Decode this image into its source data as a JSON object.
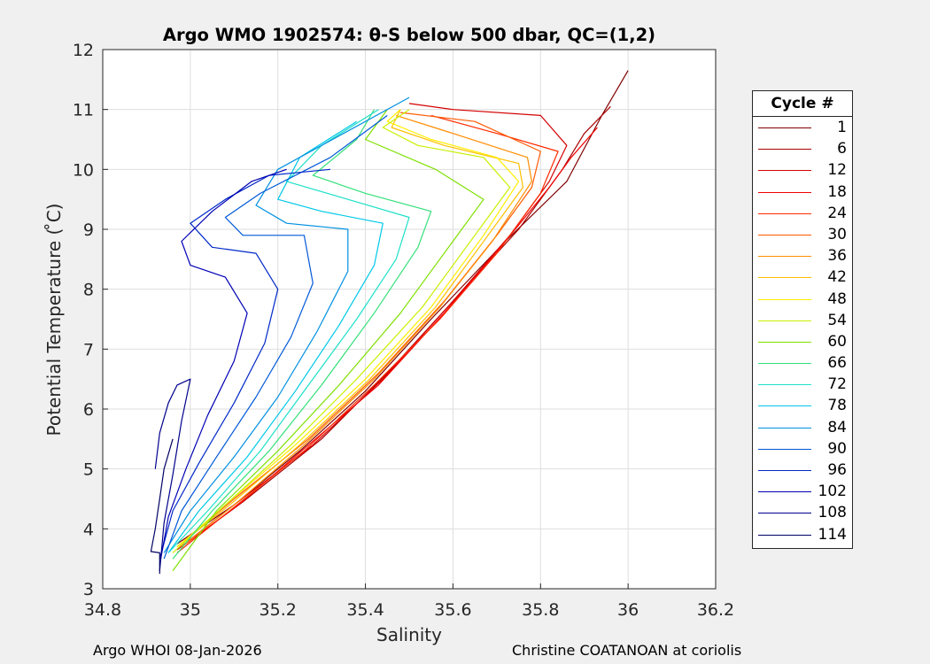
{
  "chart_data": {
    "type": "line",
    "title": "Argo WMO 1902574: θ-S below 500 dbar,  QC=(1,2)",
    "xlabel": "Salinity",
    "ylabel": "Potential Temperature ( ̊C)",
    "xlim": [
      34.8,
      36.2
    ],
    "ylim": [
      3,
      12
    ],
    "xticks": [
      "34.8",
      "35",
      "35.2",
      "35.4",
      "35.6",
      "35.8",
      "36",
      "36.2"
    ],
    "yticks": [
      "3",
      "4",
      "5",
      "6",
      "7",
      "8",
      "9",
      "10",
      "11",
      "12"
    ],
    "grid": true,
    "legend_position": "right, outside plot",
    "legend_title": "Cycle #",
    "series": [
      {
        "name": "1",
        "color": "#800000",
        "points": [
          [
            34.97,
            3.75
          ],
          [
            35.1,
            4.4
          ],
          [
            35.25,
            5.3
          ],
          [
            35.4,
            6.3
          ],
          [
            35.55,
            7.5
          ],
          [
            35.72,
            8.8
          ],
          [
            35.86,
            9.8
          ],
          [
            35.94,
            10.9
          ],
          [
            36.0,
            11.65
          ]
        ]
      },
      {
        "name": "6",
        "color": "#a80000",
        "points": [
          [
            34.98,
            3.7
          ],
          [
            35.12,
            4.45
          ],
          [
            35.3,
            5.5
          ],
          [
            35.45,
            6.6
          ],
          [
            35.6,
            7.8
          ],
          [
            35.75,
            9.0
          ],
          [
            35.85,
            10.0
          ],
          [
            35.9,
            10.6
          ],
          [
            35.96,
            11.05
          ]
        ]
      },
      {
        "name": "12",
        "color": "#d40000",
        "points": [
          [
            34.97,
            3.65
          ],
          [
            35.1,
            4.4
          ],
          [
            35.28,
            5.4
          ],
          [
            35.44,
            6.5
          ],
          [
            35.6,
            7.8
          ],
          [
            35.73,
            8.9
          ],
          [
            35.82,
            9.8
          ],
          [
            35.86,
            10.4
          ],
          [
            35.8,
            10.9
          ],
          [
            35.6,
            11.0
          ],
          [
            35.5,
            11.1
          ]
        ]
      },
      {
        "name": "18",
        "color": "#f00000",
        "points": [
          [
            34.98,
            3.7
          ],
          [
            35.11,
            4.4
          ],
          [
            35.27,
            5.4
          ],
          [
            35.43,
            6.4
          ],
          [
            35.58,
            7.6
          ],
          [
            35.72,
            8.8
          ],
          [
            35.82,
            9.7
          ],
          [
            35.87,
            10.2
          ],
          [
            35.93,
            10.7
          ]
        ]
      },
      {
        "name": "24",
        "color": "#ff2a00",
        "points": [
          [
            34.97,
            3.6
          ],
          [
            35.09,
            4.3
          ],
          [
            35.26,
            5.3
          ],
          [
            35.42,
            6.4
          ],
          [
            35.57,
            7.5
          ],
          [
            35.7,
            8.6
          ],
          [
            35.8,
            9.6
          ],
          [
            35.84,
            10.3
          ],
          [
            35.7,
            10.6
          ],
          [
            35.55,
            10.9
          ]
        ]
      },
      {
        "name": "30",
        "color": "#ff5a00",
        "points": [
          [
            34.97,
            3.7
          ],
          [
            35.1,
            4.5
          ],
          [
            35.27,
            5.5
          ],
          [
            35.43,
            6.6
          ],
          [
            35.58,
            7.8
          ],
          [
            35.7,
            8.9
          ],
          [
            35.78,
            9.7
          ],
          [
            35.8,
            10.3
          ],
          [
            35.65,
            10.8
          ],
          [
            35.48,
            10.95
          ]
        ]
      },
      {
        "name": "36",
        "color": "#ff8c00",
        "points": [
          [
            34.98,
            3.7
          ],
          [
            35.1,
            4.4
          ],
          [
            35.26,
            5.4
          ],
          [
            35.42,
            6.5
          ],
          [
            35.57,
            7.7
          ],
          [
            35.69,
            8.8
          ],
          [
            35.78,
            9.8
          ],
          [
            35.77,
            10.2
          ],
          [
            35.6,
            10.6
          ],
          [
            35.47,
            10.9
          ]
        ]
      },
      {
        "name": "42",
        "color": "#ffc000",
        "points": [
          [
            34.97,
            3.7
          ],
          [
            35.09,
            4.4
          ],
          [
            35.25,
            5.4
          ],
          [
            35.41,
            6.5
          ],
          [
            35.56,
            7.7
          ],
          [
            35.68,
            8.9
          ],
          [
            35.76,
            9.7
          ],
          [
            35.75,
            10.1
          ],
          [
            35.58,
            10.4
          ],
          [
            35.46,
            10.7
          ],
          [
            35.48,
            11.0
          ]
        ]
      },
      {
        "name": "48",
        "color": "#ffee00",
        "points": [
          [
            34.97,
            3.7
          ],
          [
            35.08,
            4.4
          ],
          [
            35.24,
            5.4
          ],
          [
            35.4,
            6.5
          ],
          [
            35.55,
            7.7
          ],
          [
            35.67,
            8.9
          ],
          [
            35.75,
            9.8
          ],
          [
            35.7,
            10.2
          ],
          [
            35.55,
            10.5
          ],
          [
            35.45,
            10.8
          ],
          [
            35.48,
            11.0
          ]
        ]
      },
      {
        "name": "54",
        "color": "#c8f000",
        "points": [
          [
            34.96,
            3.6
          ],
          [
            35.08,
            4.4
          ],
          [
            35.23,
            5.4
          ],
          [
            35.38,
            6.5
          ],
          [
            35.53,
            7.7
          ],
          [
            35.65,
            8.9
          ],
          [
            35.73,
            9.7
          ],
          [
            35.67,
            10.2
          ],
          [
            35.52,
            10.4
          ],
          [
            35.44,
            10.7
          ],
          [
            35.5,
            11.0
          ]
        ]
      },
      {
        "name": "60",
        "color": "#7ee000",
        "points": [
          [
            34.96,
            3.3
          ],
          [
            35.06,
            4.3
          ],
          [
            35.2,
            5.3
          ],
          [
            35.34,
            6.4
          ],
          [
            35.48,
            7.6
          ],
          [
            35.6,
            8.8
          ],
          [
            35.67,
            9.5
          ],
          [
            35.56,
            10.0
          ],
          [
            35.4,
            10.5
          ],
          [
            35.45,
            11.0
          ]
        ]
      },
      {
        "name": "66",
        "color": "#34e07a",
        "points": [
          [
            34.96,
            3.5
          ],
          [
            35.05,
            4.3
          ],
          [
            35.18,
            5.3
          ],
          [
            35.3,
            6.4
          ],
          [
            35.42,
            7.6
          ],
          [
            35.52,
            8.7
          ],
          [
            35.55,
            9.3
          ],
          [
            35.4,
            9.6
          ],
          [
            35.28,
            9.9
          ],
          [
            35.38,
            10.5
          ],
          [
            35.42,
            11.0
          ]
        ]
      },
      {
        "name": "72",
        "color": "#1ee0c8",
        "points": [
          [
            34.95,
            3.6
          ],
          [
            35.04,
            4.3
          ],
          [
            35.16,
            5.3
          ],
          [
            35.27,
            6.4
          ],
          [
            35.38,
            7.5
          ],
          [
            35.47,
            8.5
          ],
          [
            35.5,
            9.2
          ],
          [
            35.36,
            9.5
          ],
          [
            35.22,
            9.8
          ],
          [
            35.3,
            10.4
          ],
          [
            35.43,
            11.0
          ]
        ]
      },
      {
        "name": "78",
        "color": "#00c8e8",
        "points": [
          [
            34.95,
            3.6
          ],
          [
            35.02,
            4.3
          ],
          [
            35.13,
            5.2
          ],
          [
            35.24,
            6.3
          ],
          [
            35.34,
            7.4
          ],
          [
            35.42,
            8.4
          ],
          [
            35.44,
            9.1
          ],
          [
            35.3,
            9.3
          ],
          [
            35.2,
            9.5
          ],
          [
            35.25,
            10.2
          ],
          [
            35.38,
            10.8
          ]
        ]
      },
      {
        "name": "84",
        "color": "#0090e0",
        "points": [
          [
            34.94,
            3.6
          ],
          [
            35.0,
            4.3
          ],
          [
            35.1,
            5.2
          ],
          [
            35.2,
            6.2
          ],
          [
            35.29,
            7.3
          ],
          [
            35.36,
            8.3
          ],
          [
            35.36,
            9.0
          ],
          [
            35.22,
            9.1
          ],
          [
            35.15,
            9.4
          ],
          [
            35.2,
            10.0
          ],
          [
            35.35,
            10.6
          ],
          [
            35.5,
            11.2
          ]
        ]
      },
      {
        "name": "90",
        "color": "#0058d8",
        "points": [
          [
            34.94,
            3.5
          ],
          [
            34.98,
            4.3
          ],
          [
            35.06,
            5.2
          ],
          [
            35.15,
            6.2
          ],
          [
            35.23,
            7.2
          ],
          [
            35.28,
            8.1
          ],
          [
            35.26,
            8.9
          ],
          [
            35.12,
            8.9
          ],
          [
            35.08,
            9.2
          ],
          [
            35.16,
            9.6
          ],
          [
            35.32,
            10.2
          ],
          [
            35.45,
            10.9
          ]
        ]
      },
      {
        "name": "96",
        "color": "#0028c8",
        "points": [
          [
            34.93,
            3.5
          ],
          [
            34.96,
            4.3
          ],
          [
            35.02,
            5.1
          ],
          [
            35.1,
            6.1
          ],
          [
            35.17,
            7.1
          ],
          [
            35.2,
            8.0
          ],
          [
            35.15,
            8.6
          ],
          [
            35.05,
            8.7
          ],
          [
            35.0,
            9.1
          ],
          [
            35.08,
            9.5
          ],
          [
            35.18,
            9.9
          ],
          [
            35.25,
            9.95
          ],
          [
            35.32,
            10.0
          ]
        ]
      },
      {
        "name": "102",
        "color": "#0000b4",
        "points": [
          [
            34.93,
            3.4
          ],
          [
            34.95,
            4.2
          ],
          [
            34.99,
            5.0
          ],
          [
            35.04,
            5.9
          ],
          [
            35.1,
            6.8
          ],
          [
            35.13,
            7.6
          ],
          [
            35.08,
            8.2
          ],
          [
            35.0,
            8.4
          ],
          [
            34.98,
            8.8
          ],
          [
            35.05,
            9.3
          ],
          [
            35.14,
            9.8
          ],
          [
            35.22,
            10.0
          ]
        ]
      },
      {
        "name": "108",
        "color": "#00008c",
        "points": [
          [
            34.93,
            3.3
          ],
          [
            34.94,
            4.1
          ],
          [
            34.96,
            4.9
          ],
          [
            34.98,
            5.8
          ],
          [
            35.0,
            6.5
          ],
          [
            34.97,
            6.4
          ],
          [
            34.95,
            6.1
          ],
          [
            34.93,
            5.6
          ],
          [
            34.92,
            5.0
          ]
        ]
      },
      {
        "name": "114",
        "color": "#000064",
        "points": [
          [
            34.93,
            3.25
          ],
          [
            34.93,
            3.6
          ],
          [
            34.91,
            3.62
          ],
          [
            34.92,
            4.0
          ],
          [
            34.93,
            4.5
          ],
          [
            34.94,
            5.0
          ],
          [
            34.96,
            5.5
          ]
        ]
      }
    ]
  },
  "footer": {
    "left": "Argo WHOI 08-Jan-2026",
    "right": "Christine COATANOAN at coriolis"
  }
}
